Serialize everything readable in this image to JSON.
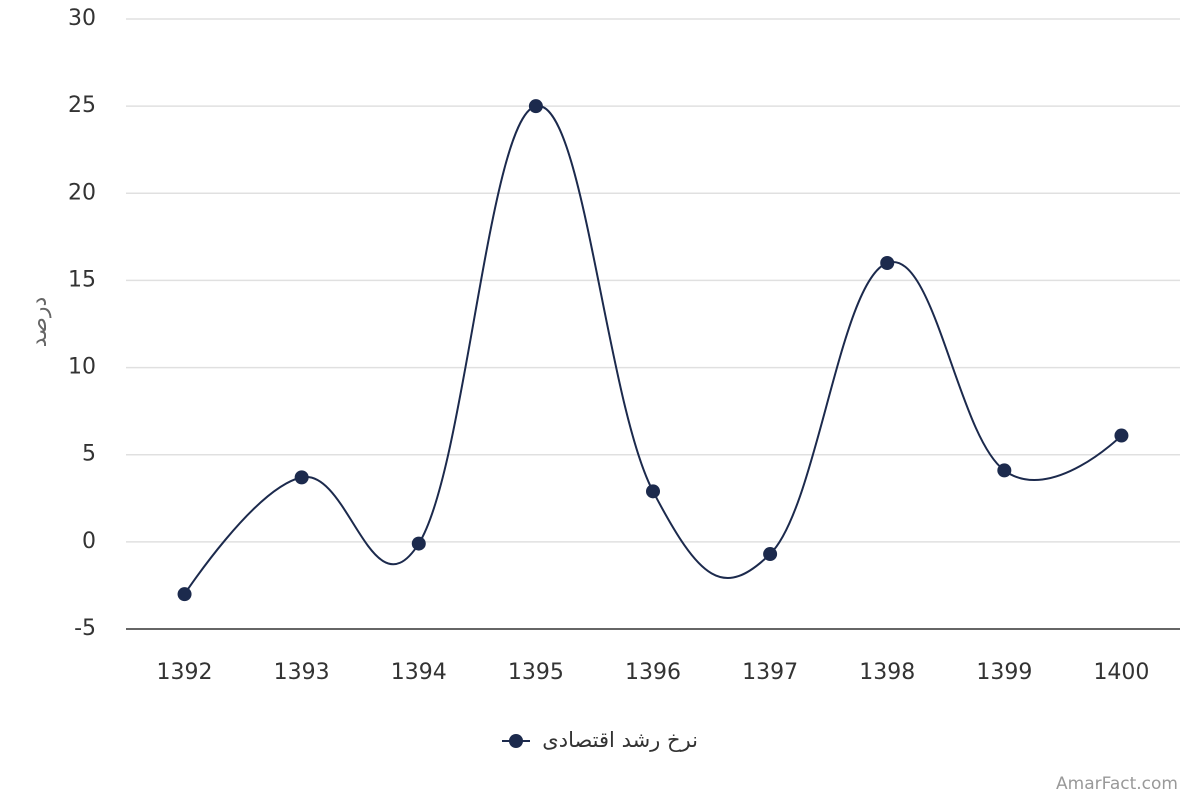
{
  "chart_data": {
    "type": "line",
    "smooth": true,
    "y_label": "درصد",
    "categories": [
      "1392",
      "1393",
      "1394",
      "1395",
      "1396",
      "1397",
      "1398",
      "1399",
      "1400"
    ],
    "series": [
      {
        "name": "نرخ رشد اقتصادی",
        "color": "#1c2a4d",
        "values": [
          -3,
          3.7,
          -0.1,
          25,
          2.9,
          -0.7,
          16,
          4.1,
          6.1
        ]
      }
    ],
    "ylim": [
      -5,
      30
    ],
    "yticks": [
      -5,
      0,
      5,
      10,
      15,
      20,
      25,
      30
    ],
    "grid": true,
    "legend": "bottom",
    "credit": "AmarFact.com"
  }
}
